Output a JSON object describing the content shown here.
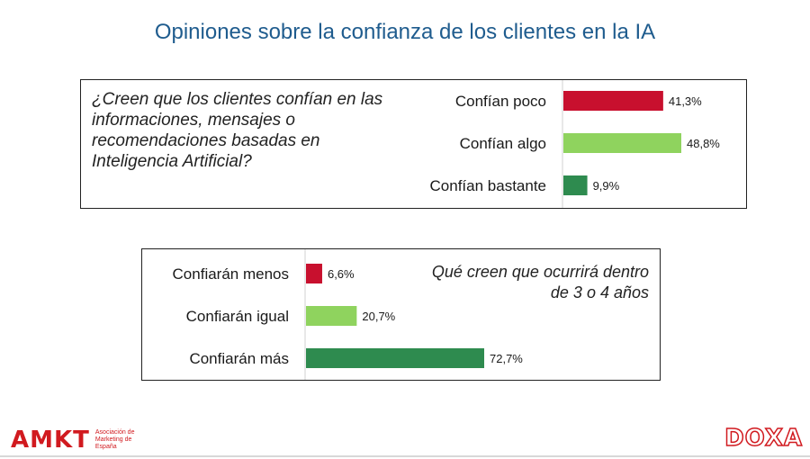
{
  "title": "Opiniones sobre la confianza de los clientes en la IA",
  "colors": {
    "title": "#1f5c8e",
    "red": "#c8102e",
    "light_green": "#8fd35e",
    "dark_green": "#2e8b4f",
    "brand_red": "#d11a1f"
  },
  "chart_data": [
    {
      "type": "bar",
      "orientation": "horizontal",
      "question": "¿Creen que los clientes confían en las informaciones, mensajes o recomendaciones basadas en Inteligencia Artificial?",
      "categories": [
        "Confían poco",
        "Confían algo",
        "Confían bastante"
      ],
      "values": [
        41.3,
        48.8,
        9.9
      ],
      "value_labels": [
        "41,3%",
        "48,8%",
        "9,9%"
      ],
      "colors": [
        "#c8102e",
        "#8fd35e",
        "#2e8b4f"
      ],
      "xlim": [
        0,
        60
      ]
    },
    {
      "type": "bar",
      "orientation": "horizontal",
      "question": "Qué creen que ocurrirá dentro de 3 o 4 años",
      "categories": [
        "Confiarán menos",
        "Confiarán igual",
        "Confiarán más"
      ],
      "values": [
        6.6,
        20.7,
        72.7
      ],
      "value_labels": [
        "6,6%",
        "20,7%",
        "72,7%"
      ],
      "colors": [
        "#c8102e",
        "#8fd35e",
        "#2e8b4f"
      ],
      "xlim": [
        0,
        100
      ]
    }
  ],
  "footer": {
    "left_logo": "AMKT",
    "left_logo_sub": "Asociación de Marketing de España",
    "right_logo": "DOXA"
  }
}
